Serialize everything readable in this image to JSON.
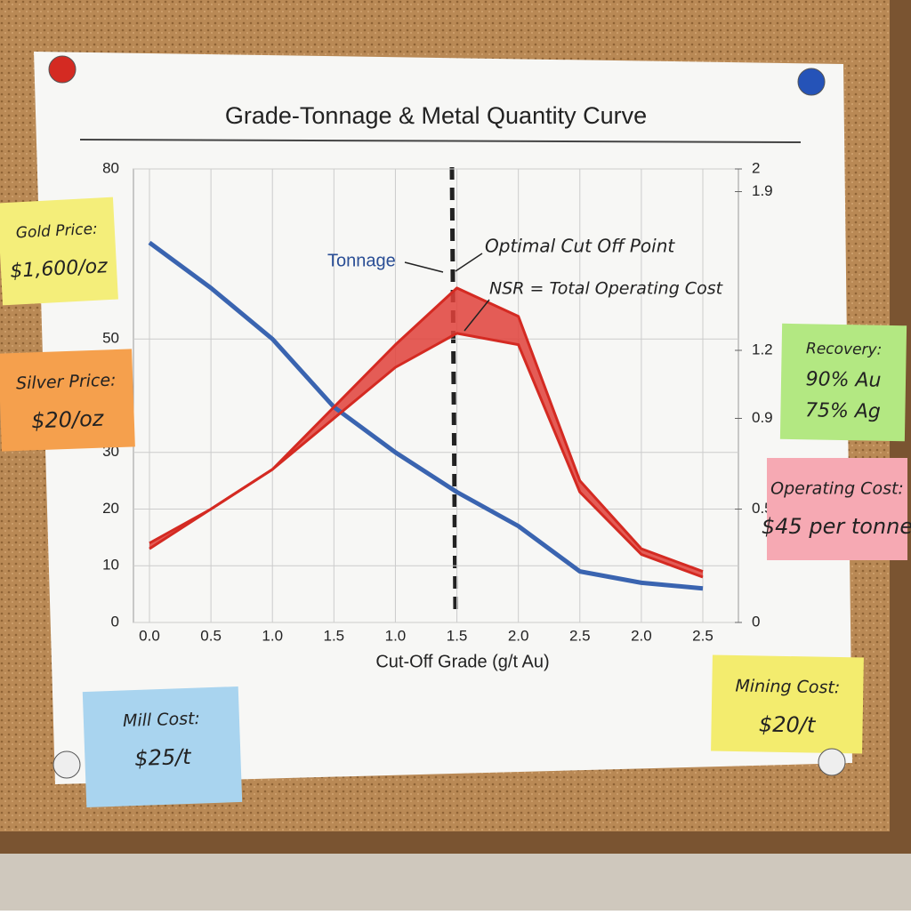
{
  "chart_data": {
    "type": "line",
    "title": "Grade-Tonnage & Metal Quantity Curve",
    "x_label": "Cut-Off Grade (g/t Au)",
    "categories": [
      "0.0",
      "0.5",
      "1.0",
      "1.5",
      "1.0",
      "1.5",
      "2.0",
      "2.5",
      "2.0",
      "2.5"
    ],
    "series": [
      {
        "color": "#3a64b0",
        "values": [
          67,
          59,
          50,
          38,
          30,
          23,
          17,
          9,
          7,
          6
        ]
      },
      {
        "color": "#d42a22",
        "values": [
          14,
          20,
          27,
          38,
          49,
          59,
          54,
          25,
          13,
          9
        ]
      },
      {
        "color": "#d42a22",
        "values": [
          13,
          20,
          27,
          36,
          45,
          51,
          49,
          23,
          12,
          8
        ]
      }
    ],
    "ylim": [
      0,
      80
    ],
    "yticks": [
      0,
      10,
      20,
      30,
      50,
      80
    ],
    "y2lim": [
      0,
      2.0
    ],
    "y2ticks": [
      0.0,
      0.5,
      0.9,
      1.2,
      1.9,
      2.0
    ],
    "grid": true,
    "annotations": [
      "Tonnage",
      "Optimal Cut Off Point",
      "NSR = Total Operating Cost"
    ],
    "notes": [
      {
        "title": "Gold Price:",
        "text": "$1,600/oz"
      },
      {
        "title": "Silver Price:",
        "text": "$20/oz"
      },
      {
        "title": "Recovery:",
        "text": "90% Au",
        "text2": "75% Ag"
      },
      {
        "title": "Operating Cost:",
        "text": "$45 per tonne"
      },
      {
        "title": "Mill Cost:",
        "text": "$25/t"
      },
      {
        "title": "Mining Cost:",
        "text": "$20/t"
      }
    ]
  }
}
